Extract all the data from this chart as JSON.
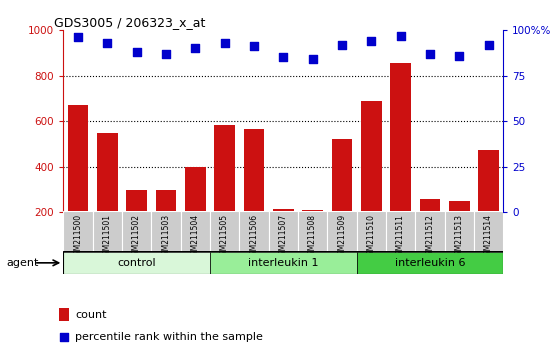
{
  "title": "GDS3005 / 206323_x_at",
  "samples": [
    "GSM211500",
    "GSM211501",
    "GSM211502",
    "GSM211503",
    "GSM211504",
    "GSM211505",
    "GSM211506",
    "GSM211507",
    "GSM211508",
    "GSM211509",
    "GSM211510",
    "GSM211511",
    "GSM211512",
    "GSM211513",
    "GSM211514"
  ],
  "counts": [
    670,
    550,
    298,
    298,
    400,
    585,
    565,
    215,
    210,
    520,
    690,
    855,
    258,
    252,
    475
  ],
  "percentiles": [
    96,
    93,
    88,
    87,
    90,
    93,
    91,
    85,
    84,
    92,
    94,
    97,
    87,
    86,
    92
  ],
  "groups": [
    {
      "label": "control",
      "start": 0,
      "end": 5,
      "color": "#d9f7d9"
    },
    {
      "label": "interleukin 1",
      "start": 5,
      "end": 10,
      "color": "#99ee99"
    },
    {
      "label": "interleukin 6",
      "start": 10,
      "end": 15,
      "color": "#44cc44"
    }
  ],
  "bar_color": "#cc1111",
  "dot_color": "#0000cc",
  "ylim_left": [
    200,
    1000
  ],
  "ylim_right": [
    0,
    100
  ],
  "yticks_left": [
    200,
    400,
    600,
    800,
    1000
  ],
  "yticks_right": [
    0,
    25,
    50,
    75,
    100
  ],
  "grid_values": [
    400,
    600,
    800
  ],
  "background_color": "#ffffff",
  "tick_label_area_color": "#cccccc",
  "agent_label": "agent",
  "legend_count_label": "count",
  "legend_percentile_label": "percentile rank within the sample"
}
